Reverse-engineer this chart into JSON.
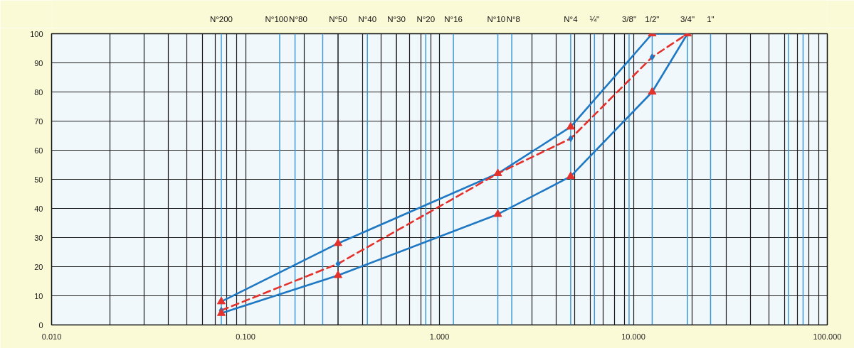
{
  "chart_data": {
    "type": "line",
    "log": "x",
    "grid": true,
    "xlim": [
      0.01,
      100
    ],
    "ylim": [
      0,
      100
    ],
    "xticks": [
      {
        "value": 0.01,
        "label": "0.010"
      },
      {
        "value": 0.02,
        "label": null
      },
      {
        "value": 0.03,
        "label": null
      },
      {
        "value": 0.04,
        "label": null
      },
      {
        "value": 0.05,
        "label": null
      },
      {
        "value": 0.06,
        "label": null
      },
      {
        "value": 0.07,
        "label": null
      },
      {
        "value": 0.08,
        "label": null
      },
      {
        "value": 0.09,
        "label": null
      },
      {
        "value": 0.1,
        "label": "0.100"
      },
      {
        "value": 0.2,
        "label": null
      },
      {
        "value": 0.4,
        "label": null
      },
      {
        "value": 0.5,
        "label": null
      },
      {
        "value": 0.7,
        "label": null
      },
      {
        "value": 0.8,
        "label": null
      },
      {
        "value": 0.9,
        "label": null
      },
      {
        "value": 1,
        "label": "1.000"
      },
      {
        "value": 3,
        "label": null
      },
      {
        "value": 4,
        "label": null
      },
      {
        "value": 5,
        "label": null
      },
      {
        "value": 6,
        "label": null
      },
      {
        "value": 7,
        "label": null
      },
      {
        "value": 8,
        "label": null
      },
      {
        "value": 9,
        "label": null
      },
      {
        "value": 10,
        "label": "10.000"
      },
      {
        "value": 20,
        "label": null
      },
      {
        "value": 30,
        "label": null
      },
      {
        "value": 40,
        "label": null
      },
      {
        "value": 50,
        "label": null
      },
      {
        "value": 60,
        "label": null
      },
      {
        "value": 70,
        "label": null
      },
      {
        "value": 80,
        "label": null
      },
      {
        "value": 90,
        "label": null
      },
      {
        "value": 100,
        "label": "100.000"
      }
    ],
    "yticks": [
      0,
      10,
      20,
      30,
      40,
      50,
      60,
      70,
      80,
      90,
      100
    ],
    "series": [
      {
        "color": "#1f78c4",
        "x": [
          0.075,
          0.3,
          2,
          4.75,
          12.5,
          19
        ],
        "values": [
          8,
          28,
          52,
          68,
          100,
          100
        ]
      },
      {
        "color": "#1f78c4",
        "x": [
          0.075,
          0.3,
          2,
          4.75,
          12.5,
          19
        ],
        "values": [
          4,
          17,
          38,
          51,
          80,
          100
        ]
      },
      {
        "color": "#e4312b",
        "line_style": "dashed",
        "x": [
          0.075,
          0.3,
          2,
          4.75,
          12.5,
          19
        ],
        "values": [
          5,
          21,
          52,
          64,
          92,
          100
        ]
      },
      {
        "type": "scatter",
        "color": "#1f78c4",
        "marker": "diamond",
        "x": [
          0.075,
          0.3,
          4.75,
          12.5
        ],
        "values": [
          5,
          21,
          64,
          92
        ]
      },
      {
        "type": "scatter",
        "color": "#e4312b",
        "marker": "triangle",
        "x": [
          0.075,
          0.3,
          2,
          4.75,
          12.5,
          19
        ],
        "values": [
          8,
          28,
          52,
          68,
          100,
          100
        ]
      },
      {
        "type": "scatter",
        "color": "#e4312b",
        "marker": "triangle",
        "x": [
          0.075,
          0.3,
          2,
          4.75,
          12.5
        ],
        "values": [
          4,
          17,
          38,
          51,
          80
        ]
      }
    ],
    "ref_lines": [
      {
        "axis": "x",
        "value": 0.075,
        "label": "N°200",
        "color": "#3d98d6"
      },
      {
        "axis": "x",
        "value": 0.15,
        "label": "N°100",
        "color": "#3d98d6"
      },
      {
        "axis": "x",
        "value": 0.18,
        "label": "N°80",
        "color": "#3d98d6"
      },
      {
        "axis": "x",
        "value": 0.25,
        "color": "#3d98d6"
      },
      {
        "axis": "x",
        "value": 0.3,
        "label": "N°50",
        "color": "#1a1a1a"
      },
      {
        "axis": "x",
        "value": 0.425,
        "label": "N°40",
        "color": "#3d98d6"
      },
      {
        "axis": "x",
        "value": 0.6,
        "label": "N°30",
        "color": "#1a1a1a"
      },
      {
        "axis": "x",
        "value": 0.85,
        "label": "N°20",
        "color": "#3d98d6"
      },
      {
        "axis": "x",
        "value": 1.18,
        "label": "N°16",
        "color": "#3d98d6"
      },
      {
        "axis": "x",
        "value": 2,
        "label": "N°10",
        "color": "#3d98d6"
      },
      {
        "axis": "x",
        "value": 2.36,
        "label": "N°8",
        "color": "#3d98d6"
      },
      {
        "axis": "x",
        "value": 4.75,
        "label": "N°4",
        "color": "#3d98d6"
      },
      {
        "axis": "x",
        "value": 6.3,
        "label": "¼\"",
        "color": "#3d98d6"
      },
      {
        "axis": "x",
        "value": 9.5,
        "color": "#3d98d6"
      },
      {
        "axis": "x",
        "value": 12.5,
        "color": "#3d98d6"
      },
      {
        "axis": "x",
        "value": 19,
        "color": "#3d98d6"
      },
      {
        "axis": "x",
        "value": 25,
        "color": "#3d98d6"
      },
      {
        "axis": "x",
        "value": 63,
        "color": "#3d98d6"
      },
      {
        "axis": "x",
        "value": 75,
        "color": "#3d98d6"
      }
    ],
    "annotations": [
      {
        "text": "3/8\"",
        "x": 9.5,
        "y": 100
      },
      {
        "text": "1/2\"",
        "x": 12.5,
        "y": 100
      },
      {
        "text": "3/4\"",
        "x": 19,
        "y": 100
      },
      {
        "text": "1\"",
        "x": 25,
        "y": 100
      }
    ]
  }
}
